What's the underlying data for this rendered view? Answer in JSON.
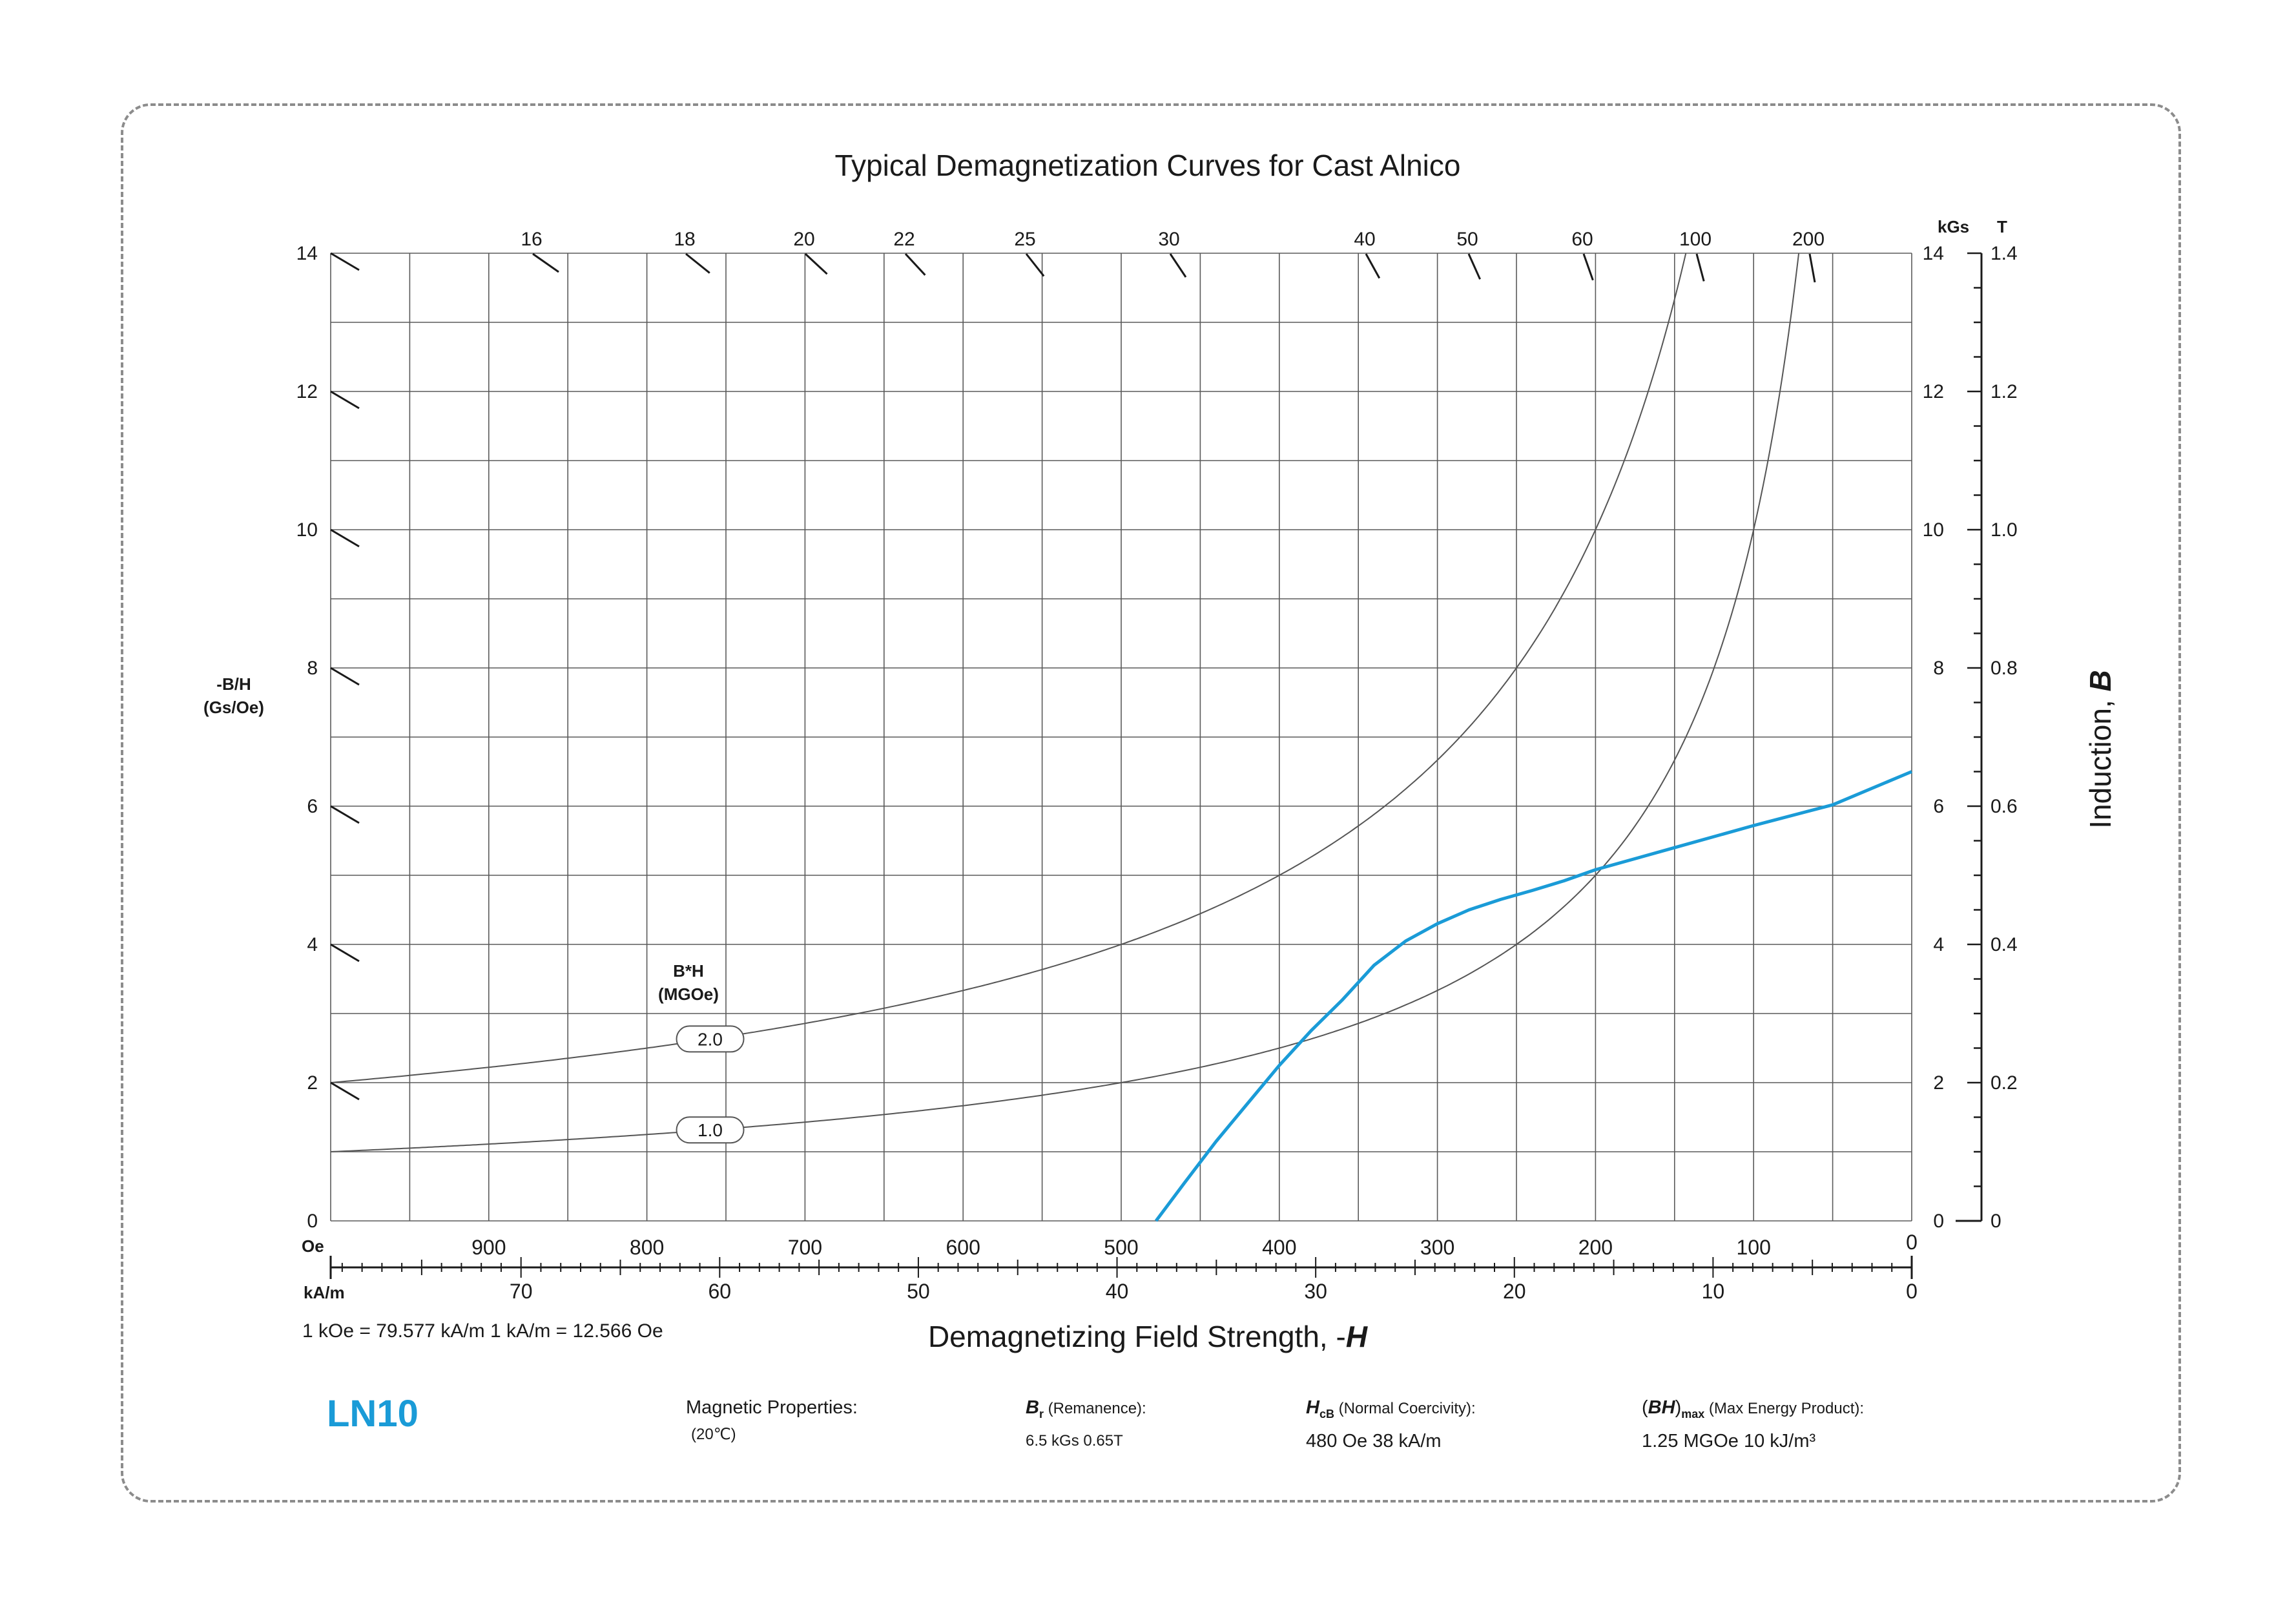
{
  "title": "Typical Demagnetization Curves for Cast Alnico",
  "colors": {
    "curve": "#1a9bd7",
    "grid": "#5a5a5a",
    "iso": "#555555",
    "text": "#1a1a1a"
  },
  "axes": {
    "x_title_prefix": "Demagnetizing Field Strength, -",
    "x_title_symbol": "H",
    "y_right_title_prefix": "Induction, ",
    "y_right_title_symbol": "B",
    "y_left_title_line1": "-B/H",
    "y_left_title_line2": "(Gs/Oe)",
    "oe_unit": "Oe",
    "kam_unit": "kA/m",
    "kgs_unit": "kGs",
    "t_unit": "T",
    "bh_label_line1": "B*H",
    "bh_label_line2": "(MGOe)"
  },
  "conversion": "1 kOe = 79.577 kA/m   1 kA/m = 12.566 Oe",
  "chart_data": {
    "type": "line",
    "x_axis": {
      "unit": "Oe",
      "range": [
        1000,
        0
      ],
      "ticks": [
        900,
        800,
        700,
        600,
        500,
        400,
        300,
        200,
        100,
        0
      ]
    },
    "x_axis_secondary": {
      "unit": "kA/m",
      "ticks": [
        70,
        60,
        50,
        40,
        30,
        20,
        10,
        0
      ]
    },
    "y_axis": {
      "unit": "kGs",
      "range": [
        0,
        14
      ],
      "ticks": [
        0,
        2,
        4,
        6,
        8,
        10,
        12,
        14
      ]
    },
    "y_axis_secondary": {
      "unit": "T",
      "tick_labels": [
        "0",
        "0.2",
        "0.4",
        "0.6",
        "0.8",
        "1.0",
        "1.2",
        "1.4"
      ]
    },
    "y_axis_left": {
      "label": "-B/H (Gs/Oe)",
      "tick_labels": [
        "0",
        "2",
        "4",
        "6",
        "8",
        "10",
        "12",
        "14"
      ]
    },
    "permeance_ticks": [
      "16",
      "18",
      "20",
      "22",
      "25",
      "30",
      "40",
      "50",
      "60",
      "100",
      "200"
    ],
    "energy_product_curves": [
      {
        "label": "1.0",
        "value_mgoe": 1.0
      },
      {
        "label": "2.0",
        "value_mgoe": 2.0
      }
    ],
    "series": [
      {
        "x": [
          478,
          460,
          440,
          420,
          400,
          380,
          360,
          340,
          320,
          300,
          280,
          260,
          240,
          220,
          200,
          150,
          100,
          50,
          0
        ],
        "y": [
          0,
          0.55,
          1.15,
          1.7,
          2.25,
          2.75,
          3.2,
          3.7,
          4.05,
          4.3,
          4.5,
          4.65,
          4.78,
          4.92,
          5.08,
          5.4,
          5.72,
          6.02,
          6.5
        ]
      }
    ],
    "grid": true
  },
  "properties": {
    "grade": "LN10",
    "heading": "Magnetic Properties:",
    "temperature": "(20℃)",
    "br_symbol": "B",
    "br_sub": "r",
    "br_label": " (Remanence):",
    "br_value": "6.5 kGs    0.65T",
    "hcb_symbol": "H",
    "hcb_sub": "cB",
    "hcb_label": " (Normal Coercivity):",
    "hcb_value": "480 Oe    38 kA/m",
    "bh_open": "(",
    "bh_symbol": "BH",
    "bh_close": ")",
    "bh_sub": "max",
    "bh_label": " (Max Energy Product):",
    "bh_value": "1.25 MGOe    10 kJ/m³"
  }
}
